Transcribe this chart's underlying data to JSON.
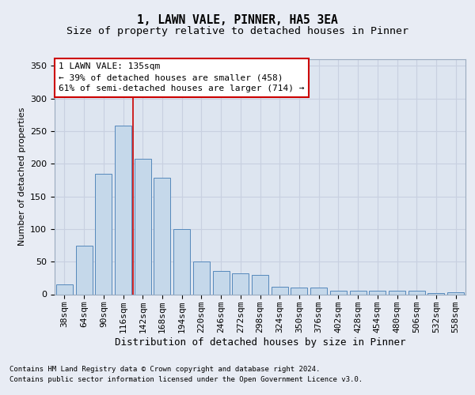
{
  "title1": "1, LAWN VALE, PINNER, HA5 3EA",
  "title2": "Size of property relative to detached houses in Pinner",
  "xlabel": "Distribution of detached houses by size in Pinner",
  "ylabel": "Number of detached properties",
  "categories": [
    "38sqm",
    "64sqm",
    "90sqm",
    "116sqm",
    "142sqm",
    "168sqm",
    "194sqm",
    "220sqm",
    "246sqm",
    "272sqm",
    "298sqm",
    "324sqm",
    "350sqm",
    "376sqm",
    "402sqm",
    "428sqm",
    "454sqm",
    "480sqm",
    "506sqm",
    "532sqm",
    "558sqm"
  ],
  "values": [
    15,
    75,
    184,
    258,
    208,
    178,
    100,
    50,
    36,
    32,
    30,
    12,
    10,
    10,
    6,
    6,
    5,
    6,
    6,
    2,
    3
  ],
  "bar_color": "#c5d8ea",
  "bar_edge_color": "#5588bb",
  "bar_linewidth": 0.7,
  "vline_x": 3.5,
  "vline_color": "#cc0000",
  "annotation_line1": "1 LAWN VALE: 135sqm",
  "annotation_line2": "← 39% of detached houses are smaller (458)",
  "annotation_line3": "61% of semi-detached houses are larger (714) →",
  "annotation_box_color": "#ffffff",
  "annotation_box_edge": "#cc0000",
  "ylim": [
    0,
    360
  ],
  "yticks": [
    0,
    50,
    100,
    150,
    200,
    250,
    300,
    350
  ],
  "grid_color": "#c8d0e0",
  "bg_color": "#e8ecf4",
  "plot_bg_color": "#dde5f0",
  "footer_line1": "Contains HM Land Registry data © Crown copyright and database right 2024.",
  "footer_line2": "Contains public sector information licensed under the Open Government Licence v3.0.",
  "title1_fontsize": 10.5,
  "title2_fontsize": 9.5,
  "xlabel_fontsize": 9,
  "ylabel_fontsize": 8,
  "tick_fontsize": 8,
  "annotation_fontsize": 8,
  "footer_fontsize": 6.5
}
